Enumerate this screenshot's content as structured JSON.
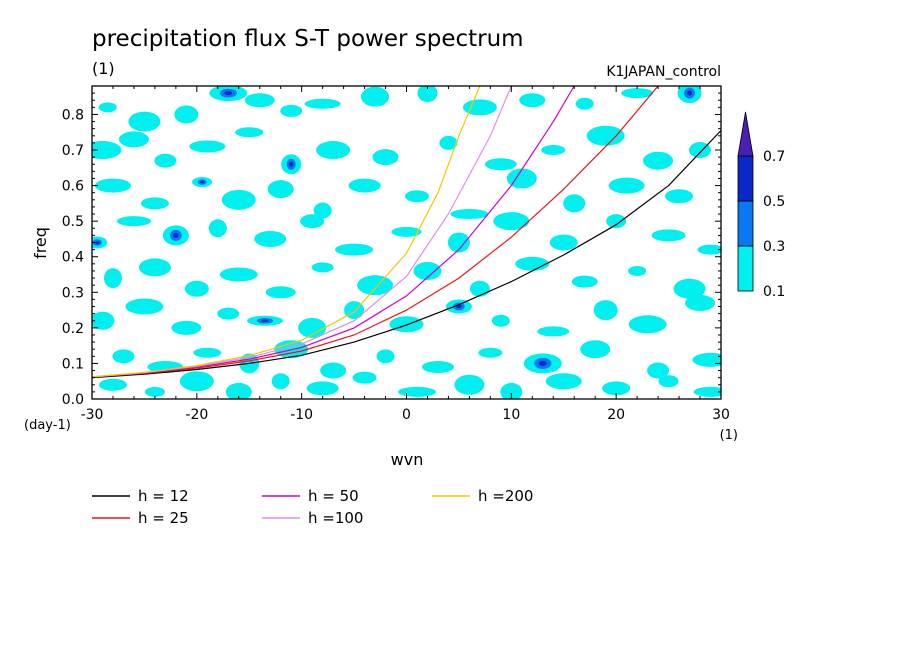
{
  "chart_data": {
    "type": "heatmap",
    "title": "precipitation flux S-T power spectrum",
    "subtitle_left": "(1)",
    "subtitle_right": "K1JAPAN_control",
    "xlabel": "wvn",
    "ylabel": "freq",
    "x_unit": "(1)",
    "y_unit": "(day-1)",
    "xlim": [
      -30,
      30
    ],
    "ylim": [
      0,
      0.88
    ],
    "x_ticks": [
      -30,
      -20,
      -10,
      0,
      10,
      20,
      30
    ],
    "x_tick_labels": [
      "-30",
      "-20",
      "-10",
      "0",
      "10",
      "20",
      "30"
    ],
    "y_ticks": [
      0,
      0.1,
      0.2,
      0.3,
      0.4,
      0.5,
      0.6,
      0.7,
      0.8
    ],
    "y_tick_labels": [
      "0.0",
      "0.1",
      "0.2",
      "0.3",
      "0.4",
      "0.5",
      "0.6",
      "0.7",
      "0.8"
    ],
    "colorbar": {
      "levels": [
        "0.1",
        "0.3",
        "0.5",
        "0.7"
      ],
      "colors": [
        "#00f0f0",
        "#0a78f0",
        "#0a28c8",
        "#4b1eb4"
      ]
    },
    "field_cells": [
      [
        -28.5,
        0.82,
        1
      ],
      [
        -25,
        0.78,
        1
      ],
      [
        -21,
        0.8,
        1
      ],
      [
        -17,
        0.86,
        2
      ],
      [
        -14,
        0.84,
        1
      ],
      [
        -11,
        0.81,
        1
      ],
      [
        -8,
        0.83,
        1
      ],
      [
        -3,
        0.85,
        1
      ],
      [
        2,
        0.86,
        1
      ],
      [
        7,
        0.82,
        1
      ],
      [
        12,
        0.84,
        1
      ],
      [
        17,
        0.83,
        1
      ],
      [
        22,
        0.86,
        1
      ],
      [
        27,
        0.86,
        2
      ],
      [
        -29,
        0.7,
        1
      ],
      [
        -26,
        0.73,
        1
      ],
      [
        -23,
        0.67,
        1
      ],
      [
        -19,
        0.71,
        1
      ],
      [
        -15,
        0.75,
        1
      ],
      [
        -11,
        0.66,
        2
      ],
      [
        -7,
        0.7,
        1
      ],
      [
        -2,
        0.68,
        1
      ],
      [
        4,
        0.72,
        1
      ],
      [
        9,
        0.66,
        1
      ],
      [
        14,
        0.7,
        1
      ],
      [
        19,
        0.74,
        1
      ],
      [
        24,
        0.67,
        1
      ],
      [
        28,
        0.7,
        1
      ],
      [
        -28,
        0.6,
        1
      ],
      [
        -24,
        0.55,
        1
      ],
      [
        -19.5,
        0.61,
        2
      ],
      [
        -16,
        0.56,
        1
      ],
      [
        -12,
        0.59,
        1
      ],
      [
        -8,
        0.53,
        1
      ],
      [
        -4,
        0.6,
        1
      ],
      [
        1,
        0.57,
        1
      ],
      [
        6,
        0.52,
        1
      ],
      [
        11,
        0.62,
        1
      ],
      [
        16,
        0.55,
        1
      ],
      [
        21,
        0.6,
        1
      ],
      [
        26,
        0.57,
        1
      ],
      [
        -29.5,
        0.44,
        2
      ],
      [
        -26,
        0.5,
        1
      ],
      [
        -22,
        0.46,
        2
      ],
      [
        -18,
        0.48,
        1
      ],
      [
        -13,
        0.45,
        1
      ],
      [
        -9,
        0.5,
        1
      ],
      [
        -5,
        0.42,
        1
      ],
      [
        0,
        0.47,
        1
      ],
      [
        5,
        0.44,
        1
      ],
      [
        10,
        0.5,
        1
      ],
      [
        15,
        0.44,
        1
      ],
      [
        20,
        0.5,
        1
      ],
      [
        25,
        0.46,
        1
      ],
      [
        29,
        0.42,
        1
      ],
      [
        -28,
        0.34,
        1
      ],
      [
        -24,
        0.37,
        1
      ],
      [
        -20,
        0.31,
        1
      ],
      [
        -16,
        0.35,
        1
      ],
      [
        -12,
        0.3,
        1
      ],
      [
        -8,
        0.37,
        1
      ],
      [
        -3,
        0.32,
        1
      ],
      [
        2,
        0.36,
        1
      ],
      [
        7,
        0.31,
        1
      ],
      [
        12,
        0.38,
        1
      ],
      [
        17,
        0.33,
        1
      ],
      [
        22,
        0.36,
        1
      ],
      [
        27,
        0.31,
        1
      ],
      [
        -29,
        0.22,
        1
      ],
      [
        -25,
        0.26,
        1
      ],
      [
        -21,
        0.2,
        1
      ],
      [
        -17,
        0.24,
        1
      ],
      [
        -13.5,
        0.22,
        2
      ],
      [
        -9,
        0.2,
        1
      ],
      [
        -5,
        0.25,
        1
      ],
      [
        0,
        0.21,
        1
      ],
      [
        5,
        0.26,
        2
      ],
      [
        9,
        0.22,
        1
      ],
      [
        14,
        0.19,
        1
      ],
      [
        19,
        0.25,
        1
      ],
      [
        23,
        0.21,
        1
      ],
      [
        28,
        0.27,
        1
      ],
      [
        -27,
        0.12,
        1
      ],
      [
        -23,
        0.09,
        1
      ],
      [
        -19,
        0.13,
        1
      ],
      [
        -15,
        0.1,
        1
      ],
      [
        -11,
        0.14,
        1
      ],
      [
        -7,
        0.08,
        1
      ],
      [
        -2,
        0.12,
        1
      ],
      [
        3,
        0.09,
        1
      ],
      [
        8,
        0.13,
        1
      ],
      [
        13,
        0.1,
        2
      ],
      [
        18,
        0.14,
        1
      ],
      [
        24,
        0.08,
        1
      ],
      [
        29,
        0.11,
        1
      ],
      [
        -28,
        0.04,
        1
      ],
      [
        -24,
        0.02,
        1
      ],
      [
        -20,
        0.05,
        1
      ],
      [
        -16,
        0.02,
        1
      ],
      [
        -12,
        0.05,
        1
      ],
      [
        -8,
        0.03,
        1
      ],
      [
        -4,
        0.06,
        1
      ],
      [
        1,
        0.02,
        1
      ],
      [
        6,
        0.04,
        1
      ],
      [
        10,
        0.02,
        1
      ],
      [
        15,
        0.05,
        1
      ],
      [
        20,
        0.03,
        1
      ],
      [
        25,
        0.05,
        1
      ],
      [
        29,
        0.02,
        1
      ]
    ],
    "series": [
      {
        "name": "h = 12",
        "color": "#000000",
        "points": [
          [
            -30,
            0.06
          ],
          [
            -25,
            0.07
          ],
          [
            -20,
            0.083
          ],
          [
            -15,
            0.1
          ],
          [
            -10,
            0.123
          ],
          [
            -5,
            0.16
          ],
          [
            0,
            0.208
          ],
          [
            5,
            0.265
          ],
          [
            10,
            0.33
          ],
          [
            15,
            0.405
          ],
          [
            20,
            0.49
          ],
          [
            25,
            0.6
          ],
          [
            30,
            0.755
          ]
        ]
      },
      {
        "name": "h = 25",
        "color": "#f01414",
        "points": [
          [
            -30,
            0.062
          ],
          [
            -25,
            0.072
          ],
          [
            -20,
            0.087
          ],
          [
            -15,
            0.107
          ],
          [
            -10,
            0.135
          ],
          [
            -5,
            0.18
          ],
          [
            0,
            0.25
          ],
          [
            5,
            0.34
          ],
          [
            10,
            0.455
          ],
          [
            15,
            0.59
          ],
          [
            20,
            0.74
          ],
          [
            24,
            0.88
          ]
        ]
      },
      {
        "name": "h = 50",
        "color": "#d200c8",
        "points": [
          [
            -30,
            0.062
          ],
          [
            -25,
            0.073
          ],
          [
            -20,
            0.09
          ],
          [
            -15,
            0.112
          ],
          [
            -10,
            0.145
          ],
          [
            -5,
            0.2
          ],
          [
            0,
            0.29
          ],
          [
            5,
            0.42
          ],
          [
            10,
            0.6
          ],
          [
            14,
            0.78
          ],
          [
            16,
            0.88
          ]
        ]
      },
      {
        "name": "h =100",
        "color": "#e08ce6",
        "points": [
          [
            -30,
            0.062
          ],
          [
            -25,
            0.074
          ],
          [
            -20,
            0.092
          ],
          [
            -15,
            0.117
          ],
          [
            -10,
            0.155
          ],
          [
            -5,
            0.22
          ],
          [
            0,
            0.345
          ],
          [
            4,
            0.52
          ],
          [
            8,
            0.74
          ],
          [
            10,
            0.88
          ]
        ]
      },
      {
        "name": "h =200",
        "color": "#f0c800",
        "points": [
          [
            -30,
            0.062
          ],
          [
            -25,
            0.075
          ],
          [
            -20,
            0.094
          ],
          [
            -15,
            0.122
          ],
          [
            -10,
            0.165
          ],
          [
            -5,
            0.245
          ],
          [
            0,
            0.41
          ],
          [
            3,
            0.58
          ],
          [
            5,
            0.74
          ],
          [
            7,
            0.88
          ]
        ]
      }
    ]
  }
}
